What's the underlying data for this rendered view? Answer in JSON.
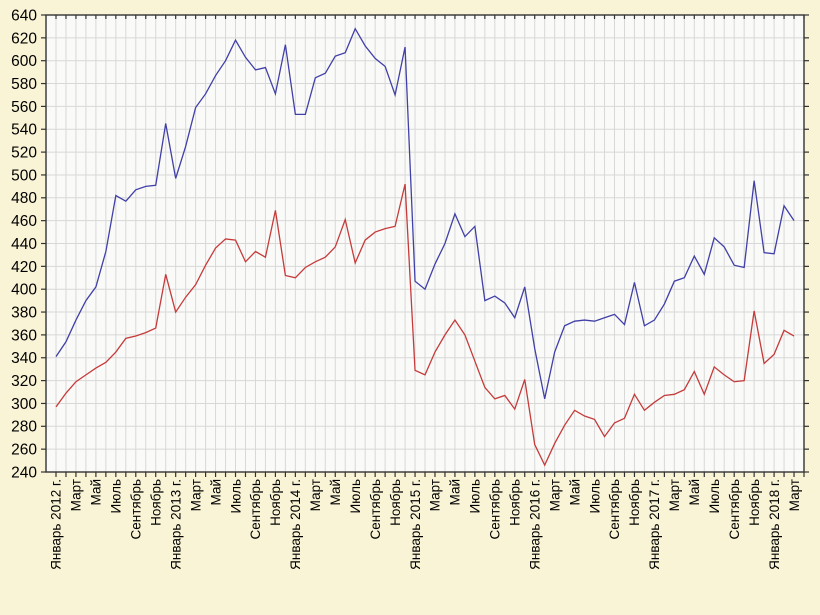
{
  "chart_data": {
    "type": "line",
    "title": "",
    "legend": "none",
    "grid": true,
    "x_unit": "month",
    "x_range_note": "monthly points from January 2012 to March 2018, minor tick every month, label every 2 months",
    "label_every": 2,
    "x_tick_labels": [
      "Январь 2012 г.",
      "Март",
      "Май",
      "Июль",
      "Сентябрь",
      "Ноябрь",
      "Январь 2013 г.",
      "Март",
      "Май",
      "Июль",
      "Сентябрь",
      "Ноябрь",
      "Январь 2014 г.",
      "Март",
      "Май",
      "Июль",
      "Сентябрь",
      "Ноябрь",
      "Январь 2015 г.",
      "Март",
      "Май",
      "Июль",
      "Сентябрь",
      "Ноябрь",
      "Январь 2016 г.",
      "Март",
      "Май",
      "Июль",
      "Сентябрь",
      "Ноябрь",
      "Январь 2017 г.",
      "Март",
      "Май",
      "Июль",
      "Сентябрь",
      "Ноябрь",
      "Январь 2018 г.",
      "Март"
    ],
    "ylim": [
      240,
      640
    ],
    "y_tick_step": 20,
    "y_tick_labels": [
      "240",
      "260",
      "280",
      "300",
      "320",
      "340",
      "360",
      "380",
      "400",
      "420",
      "440",
      "460",
      "480",
      "500",
      "520",
      "540",
      "560",
      "580",
      "600",
      "620",
      "640"
    ],
    "series": [
      {
        "name": "series-blue",
        "color": "#4040A8",
        "values": [
          341,
          354,
          373,
          390,
          402,
          433,
          482,
          477,
          487,
          490,
          491,
          545,
          497,
          525,
          559,
          571,
          587,
          600,
          618,
          603,
          592,
          594,
          571,
          614,
          553,
          553,
          585,
          589,
          604,
          607,
          628,
          613,
          602,
          595,
          570,
          612,
          407,
          400,
          422,
          440,
          466,
          446,
          455,
          390,
          394,
          388,
          375,
          402,
          348,
          304,
          345,
          368,
          372,
          373,
          372,
          375,
          378,
          369,
          406,
          368,
          373,
          387,
          407,
          410,
          429,
          413,
          445,
          437,
          421,
          419,
          495,
          432,
          431,
          473,
          460
        ]
      },
      {
        "name": "series-red",
        "color": "#C53B3B",
        "values": [
          297,
          309,
          319,
          325,
          331,
          336,
          345,
          357,
          359,
          362,
          366,
          413,
          380,
          393,
          404,
          421,
          436,
          444,
          443,
          424,
          433,
          428,
          469,
          412,
          410,
          419,
          424,
          428,
          437,
          461,
          423,
          443,
          450,
          453,
          455,
          492,
          329,
          325,
          345,
          360,
          373,
          360,
          337,
          314,
          304,
          307,
          295,
          321,
          264,
          246,
          265,
          281,
          294,
          289,
          286,
          271,
          283,
          287,
          308,
          294,
          301,
          307,
          308,
          312,
          328,
          308,
          332,
          325,
          319,
          320,
          381,
          335,
          343,
          364,
          359
        ]
      }
    ]
  },
  "colors": {
    "background": "#FAF4D6",
    "plot_background": "#FAFAF8",
    "grid": "#D8D8D8",
    "axis": "#333333",
    "text": "#000000"
  }
}
